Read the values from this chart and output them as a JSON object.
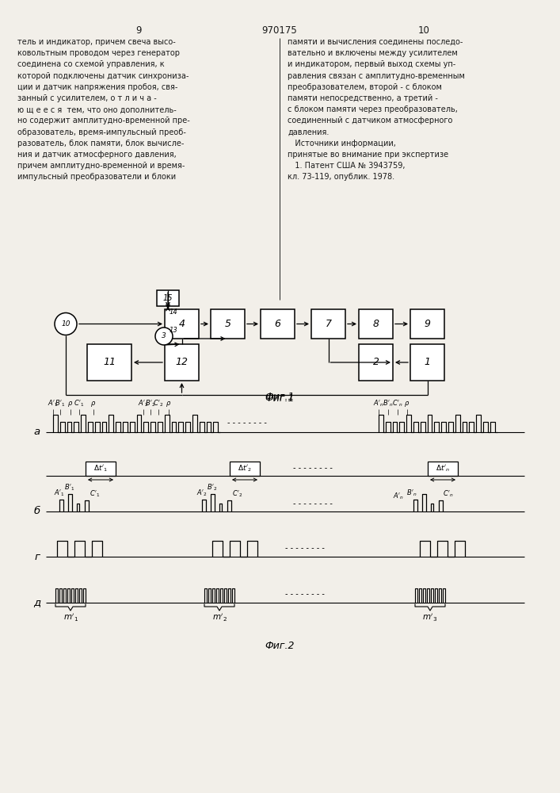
{
  "page_bg": "#f2efe9",
  "text_color": "#1a1a1a",
  "left_lines": [
    "тель и индикатор, причем свеча высо-",
    "ковольтным проводом через генератор",
    "соединена со схемой управления, к",
    "которой подключены датчик синхрониза-",
    "ции и датчик напряжения пробоя, свя-",
    "занный с усилителем, о т л и ч а -",
    "ю щ е е с я  тем, что оно дополнитель-",
    "но содержит амплитудно-временной пре-",
    "образователь, время-импульсный преоб-",
    "разователь, блок памяти, блок вычисле-",
    "ния и датчик атмосферного давления,",
    "причем амплитудно-временной и время-",
    "импульсный преобразователи и блоки"
  ],
  "right_lines": [
    "памяти и вычисления соединены последо-",
    "вательно и включены между усилителем",
    "и индикатором, первый выход схемы уп-",
    "равления связан с амплитудно-временным",
    "преобразователем, второй - с блоком",
    "памяти непосредственно, а третий -",
    "с блоком памяти через преобразователь,",
    "соединенный с датчиком атмосферного",
    "давления.",
    "   Источники информации,",
    "принятые во внимание при экспертизе",
    "   1. Патент США № 3943759,",
    "кл. 73-119, опублик. 1978."
  ],
  "fig1_caption": "Фиг.1",
  "fig2_caption": "Фиг.2"
}
